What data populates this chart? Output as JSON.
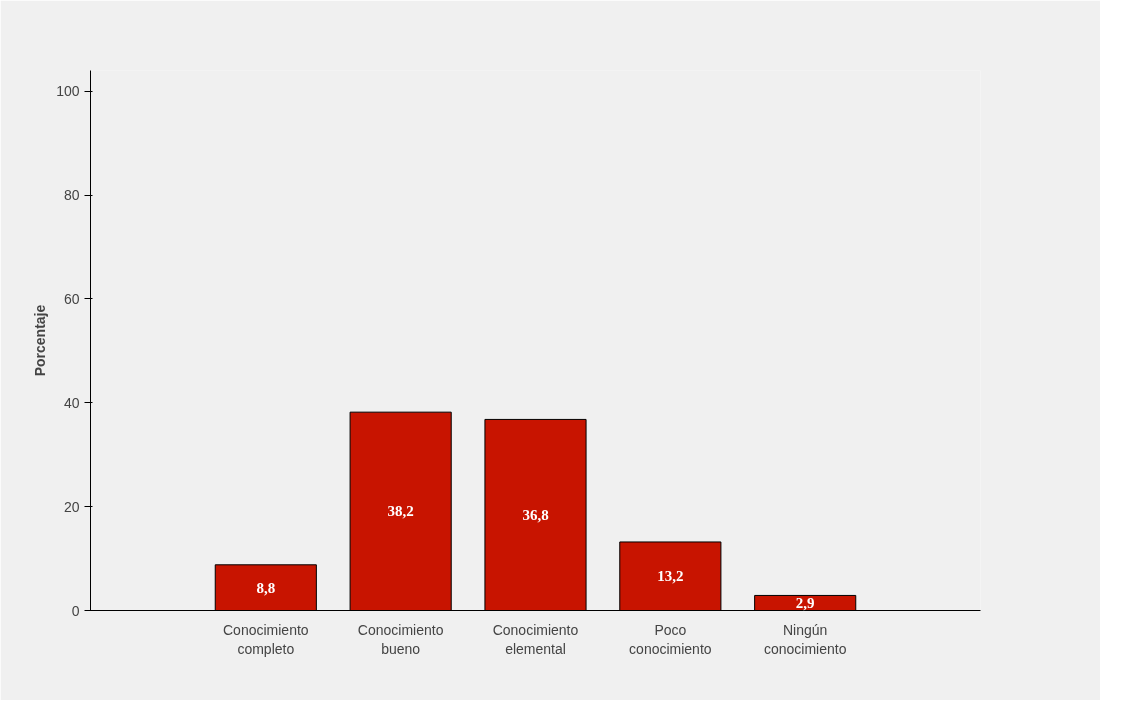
{
  "chart_data": {
    "type": "bar",
    "ylabel": "Porcentaje",
    "categories": [
      "Conocimiento\ncompleto",
      "Conocimiento\nbueno",
      "Conocimiento\nelemental",
      "Poco\nconocimiento",
      "Ningún\nconocimiento"
    ],
    "values": [
      8.8,
      38.2,
      36.8,
      13.2,
      2.9
    ],
    "value_labels": [
      "8,8",
      "38,2",
      "36,8",
      "13,2",
      "2,9"
    ],
    "color": "#c81400",
    "ylim": [
      0,
      104
    ],
    "yticks": [
      0,
      20,
      40,
      60,
      80,
      100
    ],
    "grid": false
  }
}
